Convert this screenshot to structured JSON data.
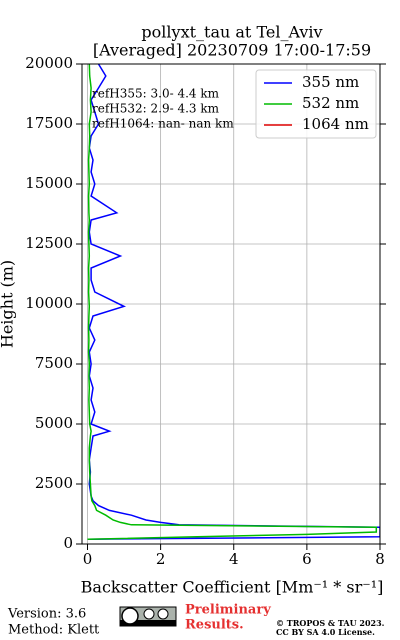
{
  "chart_data": {
    "type": "line",
    "title": "pollyxt_tau at Tel_Aviv",
    "subtitle": "[Averaged] 20230709 17:00-17:59",
    "x_label": "Backscatter Coefficient [Mm⁻¹ * sr⁻¹]",
    "y_label": "Height (m)",
    "annotations": [
      "refH355:  3.0- 4.4 km",
      "refH532:  2.9- 4.3 km",
      "refH1064:  nan- nan km"
    ],
    "heights": [
      200,
      300,
      400,
      500,
      600,
      700,
      800,
      900,
      1000,
      1200,
      1400,
      1600,
      1800,
      2000,
      2500,
      3000,
      3500,
      4000,
      4500,
      4700,
      5000,
      5500,
      6000,
      6500,
      7000,
      7500,
      8000,
      8500,
      9000,
      9500,
      9900,
      10500,
      11000,
      11500,
      12000,
      12500,
      13000,
      13500,
      13800,
      14500,
      15000,
      15500,
      16000,
      16500,
      17000,
      17500,
      18000,
      18500,
      19000,
      19500,
      20000
    ],
    "series": [
      {
        "name": "355 nm",
        "color": "#0000ff",
        "values": [
          0,
          8,
          8,
          8,
          8,
          8,
          2.5,
          2.0,
          1.6,
          1.2,
          0.6,
          0.3,
          0.15,
          0.1,
          0.05,
          0.08,
          0.05,
          0.1,
          0.15,
          0.6,
          0.1,
          0.2,
          0.1,
          0.15,
          0.05,
          0.1,
          0.05,
          0.2,
          0.05,
          0.15,
          1.0,
          0.2,
          0.1,
          0.1,
          0.9,
          0.1,
          0.05,
          0.1,
          0.8,
          0.1,
          0.2,
          0.1,
          0.15,
          0.05,
          0.1,
          0.3,
          0.2,
          0.1,
          0.3,
          0.5,
          0.3
        ]
      },
      {
        "name": "532 nm",
        "color": "#00bb00",
        "values": [
          0,
          3,
          6,
          7.9,
          7.9,
          7.9,
          1.2,
          0.9,
          0.7,
          0.5,
          0.25,
          0.2,
          0.12,
          0.1,
          0.08,
          0.06,
          0.05,
          0.05,
          0.08,
          0.1,
          0.06,
          0.05,
          0.04,
          0.05,
          0.04,
          0.05,
          0.03,
          0.04,
          0.03,
          0.04,
          0.05,
          0.03,
          0.04,
          0.03,
          0.05,
          0.04,
          0.03,
          0.05,
          0.04,
          0.03,
          0.05,
          0.04,
          0.03,
          0.05,
          0.06,
          0.05,
          0.1,
          0.08,
          0.1,
          0.06,
          0.05
        ]
      },
      {
        "name": "1064 nm",
        "color": "#dd0000",
        "values": [
          null,
          null,
          null,
          null,
          null,
          null,
          null,
          null,
          null,
          null,
          null,
          null,
          null,
          null,
          null,
          null,
          null,
          null,
          null,
          null,
          null,
          null,
          null,
          null,
          null,
          null,
          null,
          null,
          null,
          null,
          null,
          null,
          null,
          null,
          null,
          null,
          null,
          null,
          null,
          null,
          null,
          null,
          null,
          null,
          null,
          null,
          null,
          null,
          null,
          null,
          null
        ]
      }
    ],
    "xlim": [
      -0.15,
      8
    ],
    "xticks": [
      0,
      2,
      4,
      6,
      8
    ],
    "ylim": [
      0,
      20000
    ],
    "yticks": [
      0,
      2500,
      5000,
      7500,
      10000,
      12500,
      15000,
      17500,
      20000
    ],
    "grid": true,
    "legend": "upper right"
  },
  "footer": {
    "version": "Version: 3.6",
    "method": "Method: Klett",
    "notice": "Preliminary",
    "notice2": "Results.",
    "copyright": "© TROPOS & TAU 2023.",
    "license": "CC BY SA 4.0 License."
  }
}
